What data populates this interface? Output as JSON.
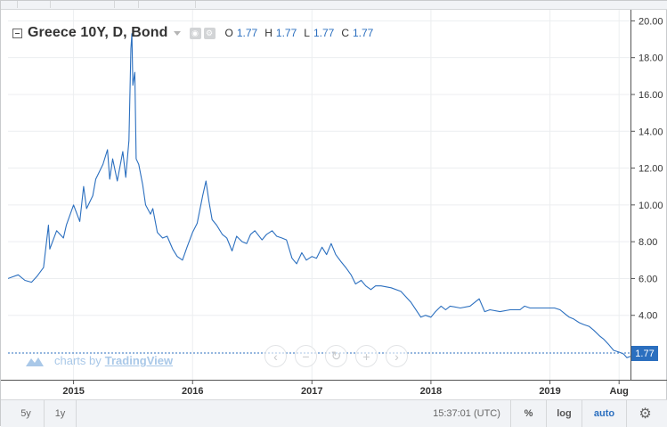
{
  "legend": {
    "title": "Greece 10Y, D, Bond",
    "ohlc": [
      {
        "key": "O",
        "value": "1.77"
      },
      {
        "key": "H",
        "value": "1.77"
      },
      {
        "key": "L",
        "value": "1.77"
      },
      {
        "key": "C",
        "value": "1.77"
      }
    ]
  },
  "watermark": {
    "prefix": "charts by",
    "brand": "TradingView"
  },
  "last_price": "1.77",
  "bottom_bar": {
    "ranges": [
      "5y",
      "1y"
    ],
    "clock": "15:37:01 (UTC)",
    "percent": "%",
    "log": "log",
    "auto": "auto"
  },
  "colors": {
    "line": "#2b6fbf",
    "accent": "#2b6fbf",
    "grid": "#eceef0"
  },
  "nav_icons": [
    "chevron-left-icon",
    "minus-icon",
    "reset-icon",
    "plus-icon",
    "chevron-right-icon"
  ],
  "chart_data": {
    "type": "line",
    "x_ticks": [
      "2015",
      "2016",
      "2017",
      "2018",
      "2019",
      "Aug"
    ],
    "x_tick_dates": [
      "2015-01-01",
      "2016-01-01",
      "2017-01-01",
      "2018-01-01",
      "2019-01-01",
      "2019-08-01"
    ],
    "y_ticks": [
      "20.00",
      "18.00",
      "16.00",
      "14.00",
      "12.00",
      "10.00",
      "8.00",
      "6.00",
      "4.00"
    ],
    "xlim": [
      "2014-06-14",
      "2019-09-05"
    ],
    "ylim": [
      0.5,
      20.6
    ],
    "grid": true,
    "series": [
      {
        "x": [
          "2014-06-14",
          "2014-07-15",
          "2014-08-05",
          "2014-08-25",
          "2014-09-10",
          "2014-10-01",
          "2014-10-16",
          "2014-10-20",
          "2014-11-10",
          "2014-12-01",
          "2014-12-10",
          "2015-01-01",
          "2015-01-20",
          "2015-02-01",
          "2015-02-10",
          "2015-03-01",
          "2015-03-10",
          "2015-04-01",
          "2015-04-15",
          "2015-04-22",
          "2015-05-01",
          "2015-05-15",
          "2015-06-01",
          "2015-06-10",
          "2015-06-20",
          "2015-06-26",
          "2015-06-29",
          "2015-07-02",
          "2015-07-08",
          "2015-07-12",
          "2015-07-20",
          "2015-08-01",
          "2015-08-10",
          "2015-08-25",
          "2015-09-01",
          "2015-09-15",
          "2015-10-01",
          "2015-10-15",
          "2015-11-01",
          "2015-11-15",
          "2015-12-01",
          "2015-12-15",
          "2016-01-01",
          "2016-01-15",
          "2016-02-01",
          "2016-02-11",
          "2016-02-20",
          "2016-03-01",
          "2016-03-15",
          "2016-04-01",
          "2016-04-15",
          "2016-05-01",
          "2016-05-15",
          "2016-06-01",
          "2016-06-15",
          "2016-06-27",
          "2016-07-10",
          "2016-08-01",
          "2016-08-15",
          "2016-09-01",
          "2016-09-15",
          "2016-10-01",
          "2016-10-15",
          "2016-11-01",
          "2016-11-15",
          "2016-12-01",
          "2016-12-15",
          "2017-01-01",
          "2017-01-15",
          "2017-02-01",
          "2017-02-15",
          "2017-03-01",
          "2017-03-15",
          "2017-04-01",
          "2017-04-15",
          "2017-05-01",
          "2017-05-15",
          "2017-06-01",
          "2017-06-15",
          "2017-07-01",
          "2017-07-15",
          "2017-08-01",
          "2017-09-01",
          "2017-10-01",
          "2017-11-01",
          "2017-12-01",
          "2017-12-15",
          "2018-01-01",
          "2018-01-15",
          "2018-02-01",
          "2018-02-15",
          "2018-03-01",
          "2018-04-01",
          "2018-05-01",
          "2018-05-29",
          "2018-06-15",
          "2018-07-01",
          "2018-08-01",
          "2018-09-01",
          "2018-10-01",
          "2018-10-15",
          "2018-11-01",
          "2018-12-01",
          "2019-01-01",
          "2019-01-15",
          "2019-02-01",
          "2019-02-15",
          "2019-03-01",
          "2019-03-15",
          "2019-04-01",
          "2019-04-15",
          "2019-05-01",
          "2019-05-15",
          "2019-06-01",
          "2019-06-15",
          "2019-07-01",
          "2019-07-15",
          "2019-08-01",
          "2019-08-15",
          "2019-08-25",
          "2019-09-05"
        ],
        "values": [
          6.0,
          6.2,
          5.9,
          5.8,
          6.1,
          6.6,
          8.9,
          7.6,
          8.6,
          8.2,
          8.9,
          10.0,
          9.1,
          11.0,
          9.8,
          10.5,
          11.4,
          12.2,
          13.0,
          11.4,
          12.5,
          11.3,
          12.9,
          11.5,
          13.5,
          18.5,
          19.3,
          16.5,
          17.2,
          12.5,
          12.2,
          11.1,
          10.0,
          9.5,
          9.8,
          8.5,
          8.2,
          8.3,
          7.6,
          7.2,
          7.0,
          7.7,
          8.5,
          9.0,
          10.5,
          11.3,
          10.2,
          9.2,
          8.9,
          8.4,
          8.2,
          7.5,
          8.3,
          8.0,
          7.9,
          8.4,
          8.6,
          8.1,
          8.4,
          8.6,
          8.3,
          8.2,
          8.1,
          7.1,
          6.8,
          7.4,
          7.0,
          7.2,
          7.1,
          7.7,
          7.3,
          7.9,
          7.3,
          6.9,
          6.6,
          6.2,
          5.7,
          5.9,
          5.6,
          5.4,
          5.6,
          5.6,
          5.5,
          5.3,
          4.7,
          3.9,
          4.0,
          3.9,
          4.2,
          4.5,
          4.3,
          4.5,
          4.4,
          4.5,
          4.9,
          4.2,
          4.3,
          4.2,
          4.3,
          4.3,
          4.5,
          4.4,
          4.4,
          4.4,
          4.4,
          4.3,
          4.1,
          3.9,
          3.8,
          3.6,
          3.5,
          3.4,
          3.2,
          2.9,
          2.7,
          2.4,
          2.1,
          2.0,
          1.9,
          1.7,
          1.77
        ]
      }
    ]
  }
}
